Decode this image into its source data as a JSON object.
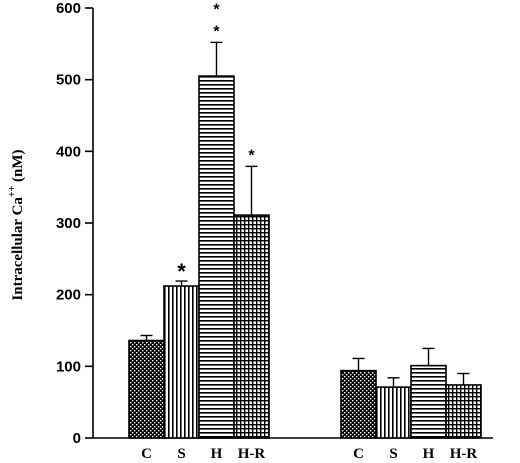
{
  "chart_data": {
    "type": "bar",
    "ylabel": "Intracellular Ca",
    "ylabel_superscript": "++",
    "ylabel_unit": "(nM)",
    "ylim": [
      0,
      600
    ],
    "yticks": [
      "0",
      "100",
      "200",
      "300",
      "400",
      "500",
      "600"
    ],
    "groups": [
      {
        "bars": [
          {
            "label": "C",
            "value": 136,
            "error": 7,
            "sig": ""
          },
          {
            "label": "S",
            "value": 212,
            "error": 7,
            "sig": "*"
          },
          {
            "label": "H",
            "value": 505,
            "error": 47,
            "sig": "* *"
          },
          {
            "label": "H-R",
            "value": 311,
            "error": 68,
            "sig": "*"
          }
        ]
      },
      {
        "bars": [
          {
            "label": "C",
            "value": 94,
            "error": 17,
            "sig": ""
          },
          {
            "label": "S",
            "value": 71,
            "error": 13,
            "sig": ""
          },
          {
            "label": "H",
            "value": 101,
            "error": 24,
            "sig": ""
          },
          {
            "label": "H-R",
            "value": 74,
            "error": 16,
            "sig": ""
          }
        ]
      }
    ],
    "bar_patterns": [
      "crosshatch-dark",
      "vertical-lines",
      "horizontal-lines",
      "grid"
    ],
    "grid": false,
    "legend": "none"
  }
}
